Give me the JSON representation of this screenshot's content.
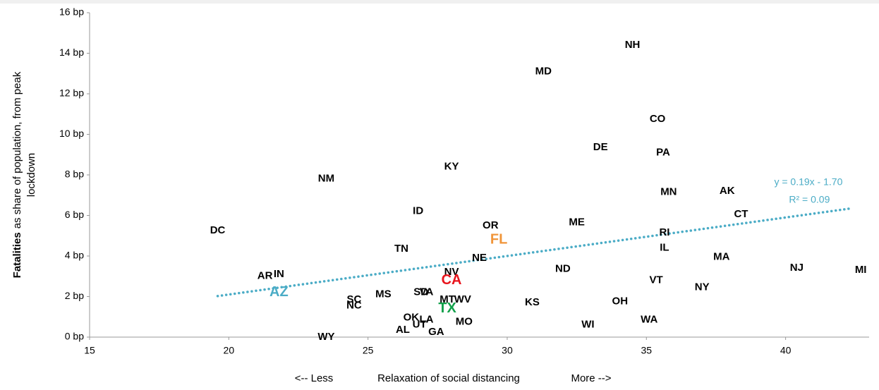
{
  "chart_data": {
    "type": "scatter",
    "ylabel_bold": "Fatalities",
    "ylabel": [
      "as share of population, from peak",
      "lockdown"
    ],
    "xlabel": [
      "<-- Less",
      "Relaxation of social distancing",
      "More -->"
    ],
    "xlim": [
      15,
      43
    ],
    "xticks": [
      15,
      20,
      25,
      30,
      35,
      40
    ],
    "ylim": [
      0,
      16
    ],
    "yticks": [
      {
        "value": 0,
        "label": "0 bp"
      },
      {
        "value": 2,
        "label": "2 bp"
      },
      {
        "value": 4,
        "label": "4 bp"
      },
      {
        "value": 6,
        "label": "6 bp"
      },
      {
        "value": 8,
        "label": "8 bp"
      },
      {
        "value": 10,
        "label": "10 bp"
      },
      {
        "value": 12,
        "label": "12 bp"
      },
      {
        "value": 14,
        "label": "14 bp"
      },
      {
        "value": 16,
        "label": "16 bp"
      }
    ],
    "grid": false,
    "points": [
      {
        "label": "NH",
        "x": 34.5,
        "y": 14.4
      },
      {
        "label": "MD",
        "x": 31.3,
        "y": 13.1
      },
      {
        "label": "CO",
        "x": 35.4,
        "y": 10.75
      },
      {
        "label": "DE",
        "x": 33.35,
        "y": 9.35
      },
      {
        "label": "PA",
        "x": 35.6,
        "y": 9.1
      },
      {
        "label": "KY",
        "x": 28.0,
        "y": 8.4
      },
      {
        "label": "NM",
        "x": 23.5,
        "y": 7.8
      },
      {
        "label": "MN",
        "x": 35.8,
        "y": 7.15
      },
      {
        "label": "AK",
        "x": 37.9,
        "y": 7.2
      },
      {
        "label": "ID",
        "x": 26.8,
        "y": 6.2
      },
      {
        "label": "CT",
        "x": 38.4,
        "y": 6.05
      },
      {
        "label": "DC",
        "x": 19.6,
        "y": 5.25
      },
      {
        "label": "OR",
        "x": 29.4,
        "y": 5.5
      },
      {
        "label": "ME",
        "x": 32.5,
        "y": 5.65
      },
      {
        "label": "RI",
        "x": 35.65,
        "y": 5.15
      },
      {
        "label": "FL",
        "x": 29.7,
        "y": 4.8,
        "color": "#f0953a"
      },
      {
        "label": "TN",
        "x": 26.2,
        "y": 4.35
      },
      {
        "label": "IL",
        "x": 35.65,
        "y": 4.4
      },
      {
        "label": "NE",
        "x": 29.0,
        "y": 3.9
      },
      {
        "label": "MA",
        "x": 37.7,
        "y": 3.95
      },
      {
        "label": "ND",
        "x": 32.0,
        "y": 3.35
      },
      {
        "label": "NJ",
        "x": 40.4,
        "y": 3.4
      },
      {
        "label": "MI",
        "x": 42.7,
        "y": 3.3
      },
      {
        "label": "NV",
        "x": 28.0,
        "y": 3.2
      },
      {
        "label": "AR",
        "x": 21.3,
        "y": 3.0
      },
      {
        "label": "IN",
        "x": 21.8,
        "y": 3.1
      },
      {
        "label": "CA",
        "x": 28.0,
        "y": 2.8,
        "color": "#e8141c"
      },
      {
        "label": "VT",
        "x": 35.35,
        "y": 2.8
      },
      {
        "label": "NY",
        "x": 37.0,
        "y": 2.45
      },
      {
        "label": "AZ",
        "x": 21.8,
        "y": 2.2,
        "color": "#4bacc6"
      },
      {
        "label": "SD",
        "x": 26.9,
        "y": 2.2
      },
      {
        "label": "VA",
        "x": 27.1,
        "y": 2.2
      },
      {
        "label": "MS",
        "x": 25.55,
        "y": 2.1
      },
      {
        "label": "SC",
        "x": 24.5,
        "y": 1.85
      },
      {
        "label": "NC",
        "x": 24.5,
        "y": 1.55
      },
      {
        "label": "MT",
        "x": 27.85,
        "y": 1.85
      },
      {
        "label": "WV",
        "x": 28.4,
        "y": 1.85
      },
      {
        "label": "KS",
        "x": 30.9,
        "y": 1.7
      },
      {
        "label": "OH",
        "x": 34.05,
        "y": 1.75
      },
      {
        "label": "TX",
        "x": 27.85,
        "y": 1.4,
        "color": "#12a14b"
      },
      {
        "label": "OK",
        "x": 26.55,
        "y": 0.95
      },
      {
        "label": "LA",
        "x": 27.1,
        "y": 0.85
      },
      {
        "label": "UT",
        "x": 26.85,
        "y": 0.6
      },
      {
        "label": "MO",
        "x": 28.45,
        "y": 0.75
      },
      {
        "label": "WA",
        "x": 35.1,
        "y": 0.85
      },
      {
        "label": "WI",
        "x": 32.9,
        "y": 0.6
      },
      {
        "label": "AL",
        "x": 26.25,
        "y": 0.35
      },
      {
        "label": "GA",
        "x": 27.45,
        "y": 0.25
      },
      {
        "label": "WY",
        "x": 23.5,
        "y": 0
      }
    ],
    "trendline": {
      "slope": 0.19,
      "intercept": -1.7,
      "x_range": [
        19.6,
        42.3
      ],
      "color": "#4bacc6",
      "equation": "y = 0.19x - 1.70",
      "r2": "R² = 0.09"
    }
  }
}
